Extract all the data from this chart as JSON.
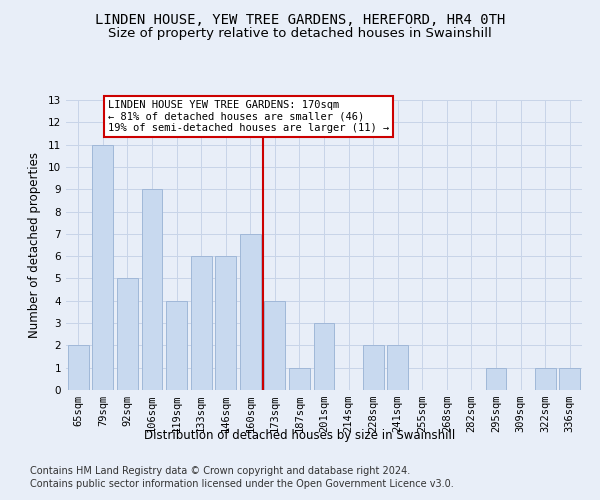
{
  "title": "LINDEN HOUSE, YEW TREE GARDENS, HEREFORD, HR4 0TH",
  "subtitle": "Size of property relative to detached houses in Swainshill",
  "xlabel": "Distribution of detached houses by size in Swainshill",
  "ylabel": "Number of detached properties",
  "categories": [
    "65sqm",
    "79sqm",
    "92sqm",
    "106sqm",
    "119sqm",
    "133sqm",
    "146sqm",
    "160sqm",
    "173sqm",
    "187sqm",
    "201sqm",
    "214sqm",
    "228sqm",
    "241sqm",
    "255sqm",
    "268sqm",
    "282sqm",
    "295sqm",
    "309sqm",
    "322sqm",
    "336sqm"
  ],
  "values": [
    2,
    11,
    5,
    9,
    4,
    6,
    6,
    7,
    4,
    1,
    3,
    0,
    2,
    2,
    0,
    0,
    0,
    1,
    0,
    1,
    1
  ],
  "bar_color": "#c8d9ef",
  "bar_edge_color": "#a0b8d8",
  "grid_color": "#c8d4e8",
  "background_color": "#e8eef8",
  "vline_position": 8,
  "vline_color": "#cc0000",
  "annotation_text": "LINDEN HOUSE YEW TREE GARDENS: 170sqm\n← 81% of detached houses are smaller (46)\n19% of semi-detached houses are larger (11) →",
  "annotation_box_facecolor": "#ffffff",
  "annotation_box_edgecolor": "#cc0000",
  "footer1": "Contains HM Land Registry data © Crown copyright and database right 2024.",
  "footer2": "Contains public sector information licensed under the Open Government Licence v3.0.",
  "ylim_max": 13,
  "yticks": [
    0,
    1,
    2,
    3,
    4,
    5,
    6,
    7,
    8,
    9,
    10,
    11,
    12,
    13
  ],
  "title_fontsize": 10,
  "subtitle_fontsize": 9.5,
  "axis_label_fontsize": 8.5,
  "tick_fontsize": 7.5,
  "annotation_fontsize": 7.5,
  "footer_fontsize": 7
}
